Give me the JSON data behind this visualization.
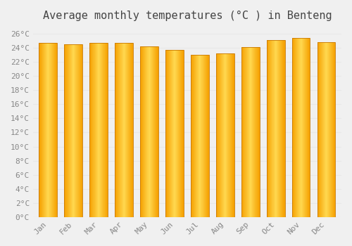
{
  "title": "Average monthly temperatures (°C ) in Benteng",
  "months": [
    "Jan",
    "Feb",
    "Mar",
    "Apr",
    "May",
    "Jun",
    "Jul",
    "Aug",
    "Sep",
    "Oct",
    "Nov",
    "Dec"
  ],
  "values": [
    24.7,
    24.5,
    24.7,
    24.7,
    24.2,
    23.7,
    23.0,
    23.2,
    24.1,
    25.1,
    25.4,
    24.8
  ],
  "bar_edge_color": "#E8960A",
  "bar_mid_color": "#FFD060",
  "bar_outer_color": "#FFA500",
  "ylim": [
    0,
    27
  ],
  "yticks": [
    0,
    2,
    4,
    6,
    8,
    10,
    12,
    14,
    16,
    18,
    20,
    22,
    24,
    26
  ],
  "ytick_labels": [
    "0°C",
    "2°C",
    "4°C",
    "6°C",
    "8°C",
    "10°C",
    "12°C",
    "14°C",
    "16°C",
    "18°C",
    "20°C",
    "22°C",
    "24°C",
    "26°C"
  ],
  "background_color": "#f0f0f0",
  "grid_color": "#e8e8e8",
  "title_fontsize": 11,
  "tick_fontsize": 8,
  "title_color": "#444444",
  "tick_color": "#888888",
  "bar_width": 0.72
}
